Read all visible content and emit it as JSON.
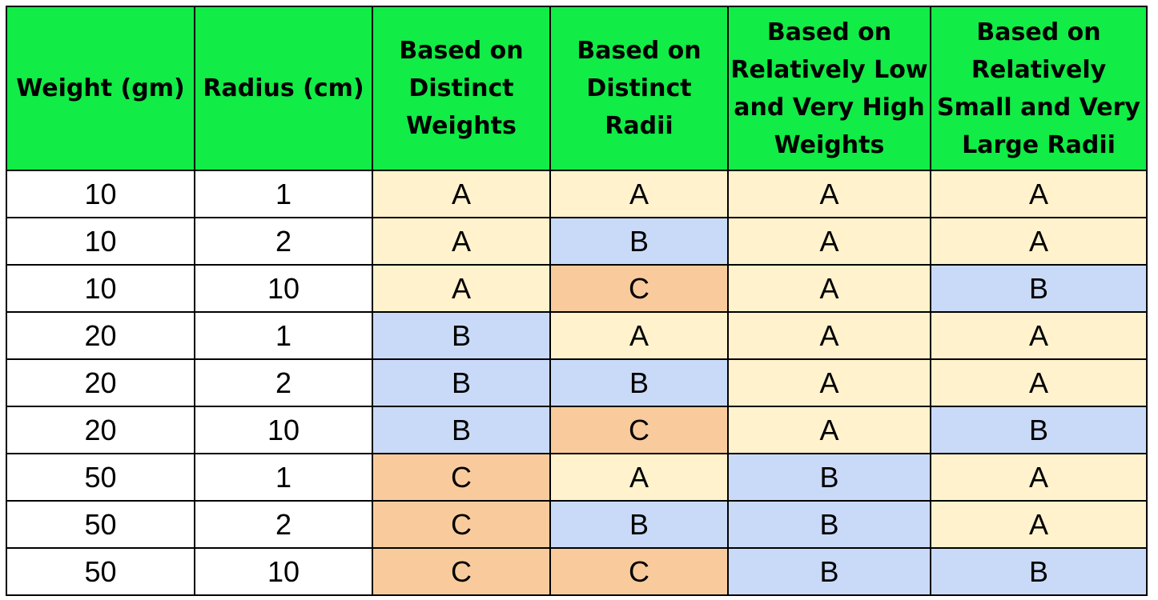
{
  "colors": {
    "header": "#11ec46",
    "A": "#fff2cc",
    "B": "#c9daf8",
    "C": "#f9cb9c",
    "plain": "#ffffff",
    "border": "#000000"
  },
  "headers": [
    "Weight (gm)",
    "Radius (cm)",
    "Based on Distinct Weights",
    "Based on Distinct Radii",
    "Based on Relatively Low and Very High Weights",
    "Based on Relatively Small and Very Large Radii"
  ],
  "rows": [
    {
      "weight": "10",
      "radius": "1",
      "groups": [
        "A",
        "A",
        "A",
        "A"
      ]
    },
    {
      "weight": "10",
      "radius": "2",
      "groups": [
        "A",
        "B",
        "A",
        "A"
      ]
    },
    {
      "weight": "10",
      "radius": "10",
      "groups": [
        "A",
        "C",
        "A",
        "B"
      ]
    },
    {
      "weight": "20",
      "radius": "1",
      "groups": [
        "B",
        "A",
        "A",
        "A"
      ]
    },
    {
      "weight": "20",
      "radius": "2",
      "groups": [
        "B",
        "B",
        "A",
        "A"
      ]
    },
    {
      "weight": "20",
      "radius": "10",
      "groups": [
        "B",
        "C",
        "A",
        "B"
      ]
    },
    {
      "weight": "50",
      "radius": "1",
      "groups": [
        "C",
        "A",
        "B",
        "A"
      ]
    },
    {
      "weight": "50",
      "radius": "2",
      "groups": [
        "C",
        "B",
        "B",
        "A"
      ]
    },
    {
      "weight": "50",
      "radius": "10",
      "groups": [
        "C",
        "C",
        "B",
        "B"
      ]
    }
  ]
}
